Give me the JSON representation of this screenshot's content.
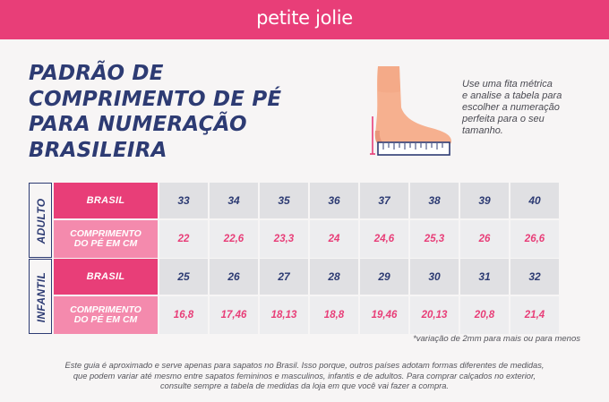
{
  "brand": "petite jolie",
  "colors": {
    "pink": "#e83e78",
    "light_pink": "#f48aad",
    "navy": "#2d3b73",
    "gray_cell": "#e0e0e3"
  },
  "title_lines": [
    "PADRÃO DE",
    "COMPRIMENTO DE PÉ",
    "PARA NUMERAÇÃO",
    "BRASILEIRA"
  ],
  "illustration": "foot-on-ruler-icon",
  "instruction_lines": [
    "Use uma fita métrica",
    "e analise a tabela para",
    "escolher a numeração",
    "perfeita para o seu",
    "tamanho."
  ],
  "tables": [
    {
      "label": "ADULTO",
      "row1_header": "BRASIL",
      "row2_header": [
        "COMPRIMENTO",
        "DO PÉ EM CM"
      ],
      "sizes": [
        "33",
        "34",
        "35",
        "36",
        "37",
        "38",
        "39",
        "40"
      ],
      "lengths": [
        "22",
        "22,6",
        "23,3",
        "24",
        "24,6",
        "25,3",
        "26",
        "26,6"
      ]
    },
    {
      "label": "INFANTIL",
      "row1_header": "BRASIL",
      "row2_header": [
        "COMPRIMENTO",
        "DO PÉ EM CM"
      ],
      "sizes": [
        "25",
        "26",
        "27",
        "28",
        "29",
        "30",
        "31",
        "32"
      ],
      "lengths": [
        "16,8",
        "17,46",
        "18,13",
        "18,8",
        "19,46",
        "20,13",
        "20,8",
        "21,4"
      ]
    }
  ],
  "variation_note": "*variação de 2mm para mais ou para menos",
  "disclaimer_lines": [
    "Este guia é aproximado e serve apenas para sapatos no Brasil. Isso porque, outros países adotam formas diferentes de medidas,",
    "que podem variar até mesmo entre sapatos femininos e masculinos, infantis e de adultos. Para comprar calçados no exterior,",
    "consulte sempre a tabela de medidas da loja em que você vai fazer a compra."
  ]
}
